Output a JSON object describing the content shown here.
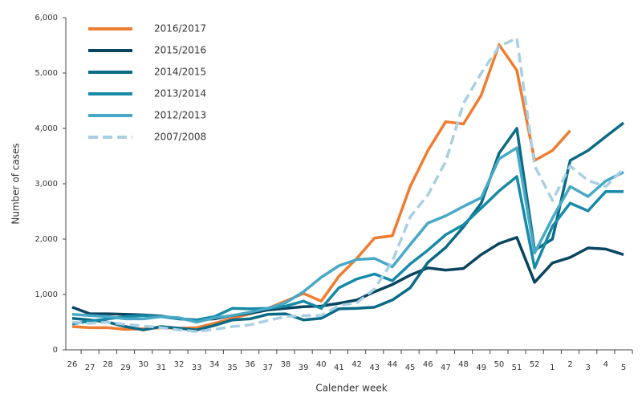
{
  "chart_data": {
    "type": "line",
    "x_label": "Calender week",
    "y_label": "Number of cases",
    "categories": [
      "26",
      "27",
      "28",
      "29",
      "30",
      "31",
      "32",
      "33",
      "34",
      "35",
      "36",
      "37",
      "38",
      "39",
      "40",
      "41",
      "42",
      "43",
      "44",
      "45",
      "46",
      "47",
      "48",
      "49",
      "50",
      "51",
      "52",
      "1",
      "2",
      "3",
      "4",
      "5"
    ],
    "ylim": [
      0,
      6000
    ],
    "yticks": [
      0,
      {
        "value": 1000,
        "label": "1,000"
      },
      {
        "value": 2000,
        "label": "2,000"
      },
      {
        "value": 3000,
        "label": "3,000"
      },
      {
        "value": 4000,
        "label": "4,000"
      },
      {
        "value": 5000,
        "label": "5,000"
      },
      {
        "value": 6000,
        "label": "6,000"
      }
    ],
    "grid": false,
    "legend": "top-left",
    "series": [
      {
        "name": "2016/2017",
        "color": "#ef7d31",
        "dashed": false,
        "values": [
          420,
          400,
          400,
          370,
          380,
          400,
          390,
          400,
          480,
          570,
          650,
          750,
          880,
          1020,
          880,
          1330,
          1650,
          2020,
          2060,
          2950,
          3600,
          4120,
          4080,
          4600,
          5510,
          5050,
          3420,
          3600,
          3960,
          null,
          null,
          null
        ]
      },
      {
        "name": "2015/2016",
        "color": "#0a4560",
        "dashed": false,
        "values": [
          770,
          650,
          650,
          640,
          630,
          610,
          560,
          540,
          560,
          620,
          660,
          720,
          750,
          780,
          790,
          840,
          900,
          1050,
          1180,
          1350,
          1480,
          1440,
          1470,
          1720,
          1920,
          2030,
          1220,
          1570,
          1670,
          1840,
          1820,
          1720
        ]
      },
      {
        "name": "2014/2015",
        "color": "#0b6a86",
        "dashed": false,
        "values": [
          570,
          540,
          500,
          420,
          360,
          420,
          390,
          360,
          440,
          540,
          560,
          640,
          650,
          540,
          570,
          740,
          750,
          770,
          900,
          1120,
          1580,
          1850,
          2220,
          2650,
          3550,
          4000,
          1800,
          2000,
          3420,
          3600,
          3850,
          4100
        ]
      },
      {
        "name": "2013/2014",
        "color": "#168aa6",
        "dashed": false,
        "values": [
          470,
          520,
          560,
          600,
          620,
          600,
          560,
          540,
          600,
          750,
          740,
          750,
          790,
          880,
          750,
          1120,
          1280,
          1370,
          1250,
          1550,
          1800,
          2080,
          2260,
          2560,
          2870,
          3130,
          1480,
          2230,
          2650,
          2510,
          2860,
          2860
        ]
      },
      {
        "name": "2012/2013",
        "color": "#48a9c6",
        "dashed": false,
        "values": [
          640,
          620,
          600,
          560,
          560,
          600,
          580,
          500,
          580,
          620,
          680,
          750,
          850,
          1050,
          1310,
          1520,
          1630,
          1650,
          1500,
          1900,
          2290,
          2420,
          2590,
          2750,
          3450,
          3650,
          1750,
          2380,
          2950,
          2770,
          3050,
          3210
        ]
      },
      {
        "name": "2007/2008",
        "color": "#a9d0e2",
        "dashed": true,
        "values": [
          500,
          480,
          500,
          460,
          430,
          400,
          360,
          330,
          370,
          420,
          450,
          530,
          600,
          620,
          620,
          800,
          850,
          1100,
          1600,
          2400,
          2800,
          3400,
          4450,
          5000,
          5480,
          5630,
          3320,
          2700,
          3320,
          3060,
          2950,
          3270
        ]
      }
    ]
  }
}
